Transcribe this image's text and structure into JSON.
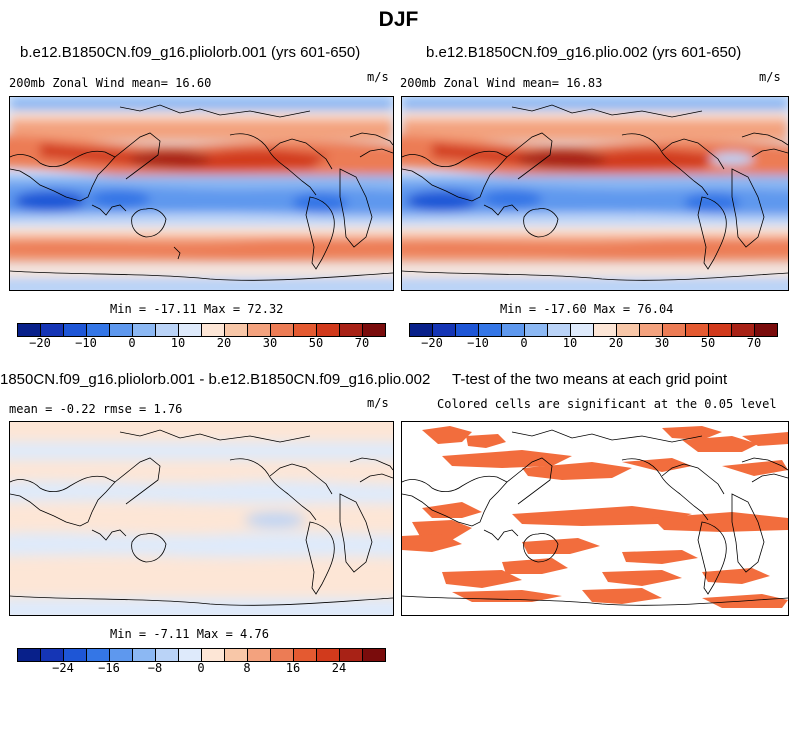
{
  "figure": {
    "title": "DJF",
    "colors": {
      "zonal_wind_palette": [
        "#08208a",
        "#1535b5",
        "#1e56d6",
        "#3476e6",
        "#5e98ee",
        "#8cb8f3",
        "#bad3f7",
        "#deeafb",
        "#fde6d6",
        "#f8c7a8",
        "#f3a27e",
        "#ec7c55",
        "#e45a31",
        "#d13a1c",
        "#a82216",
        "#7a0c0c"
      ],
      "difference_palette": [
        "#08208a",
        "#1535b5",
        "#1e56d6",
        "#3476e6",
        "#5e98ee",
        "#8cb8f3",
        "#bad3f7",
        "#deeafb",
        "#fde6d6",
        "#f8c7a8",
        "#f3a27e",
        "#ec7c55",
        "#e45a31",
        "#d13a1c",
        "#a82216",
        "#7a0c0c"
      ],
      "significance_fill": "#f26d3d",
      "coastline": "#000000"
    }
  },
  "panels": {
    "top_left": {
      "case_title": "b.e12.B1850CN.f09_g16.pliolorb.001 (yrs 601-650)",
      "left_label": "200mb Zonal Wind  mean=  16.60",
      "units": "m/s",
      "stats": "Min = -17.11 Max =  72.32"
    },
    "top_right": {
      "case_title": "b.e12.B1850CN.f09_g16.plio.002 (yrs 601-650)",
      "left_label": "200mb Zonal Wind  mean=  16.83",
      "units": "m/s",
      "stats": "Min = -17.60 Max =  76.04"
    },
    "bottom_left": {
      "case_title": "1850CN.f09_g16.pliolorb.001 - b.e12.B1850CN.f09_g16.plio.002",
      "left_label": "mean =  -0.22    rmse =   1.76",
      "units": "m/s",
      "stats": "Min =  -7.11 Max =   4.76"
    },
    "bottom_right": {
      "case_title": "T-test of the two means at each grid point",
      "subtitle": "Colored cells are significant at the 0.05 level"
    }
  },
  "colorbars": {
    "wind_ticks": [
      "−20",
      "−10",
      "0",
      "10",
      "20",
      "30",
      "50",
      "70"
    ],
    "diff_ticks": [
      "−24",
      "−16",
      "−8",
      "0",
      "8",
      "16",
      "24"
    ]
  }
}
